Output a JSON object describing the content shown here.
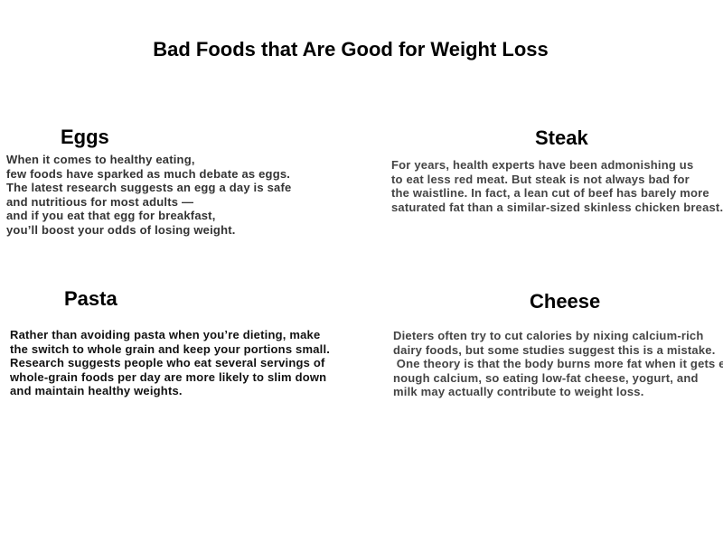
{
  "title": "Bad Foods that Are Good for Weight Loss",
  "sections": [
    {
      "heading": "Eggs",
      "lines": [
        "When it comes to healthy eating,",
        "few foods have sparked as much debate as eggs.",
        "The latest research suggests an egg a day is safe",
        "and nutritious for most adults —",
        "and if you eat that egg for breakfast,",
        "you’ll boost your odds of losing weight."
      ]
    },
    {
      "heading": "Steak",
      "lines": [
        "For years, health experts have been admonishing us",
        "to eat less red meat. But steak is not always bad for",
        "the waistline. In fact, a lean cut of beef has barely more",
        "saturated fat than a similar-sized skinless chicken breast."
      ]
    },
    {
      "heading": "Pasta",
      "lines": [
        "Rather than avoiding pasta when you’re dieting, make",
        "the switch to whole grain and keep your portions small.",
        "Research suggests people who eat several servings of",
        "whole-grain foods per day are more likely to slim down",
        "and maintain healthy weights."
      ]
    },
    {
      "heading": "Cheese",
      "lines": [
        "Dieters often try to cut calories by nixing calcium-rich",
        "dairy foods, but some studies suggest this is a mistake.",
        " One theory is that the body burns more fat when it gets e",
        "nough calcium, so eating low-fat cheese, yogurt, and",
        "milk may actually contribute to weight loss."
      ]
    }
  ]
}
